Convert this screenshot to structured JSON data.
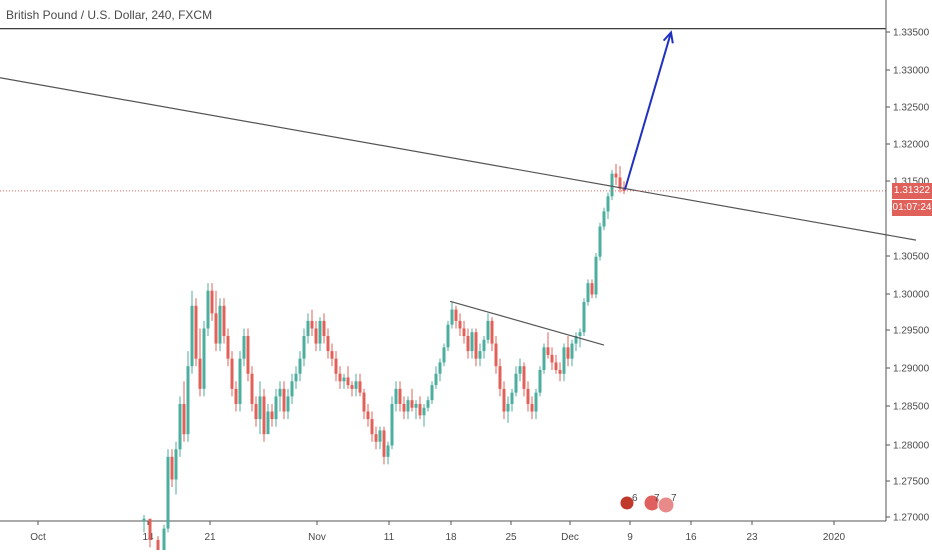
{
  "chart_data": {
    "type": "candlestick",
    "title": "British Pound / U.S. Dollar, 240, FXCM",
    "y_ticks": [
      "1.27000",
      "1.27500",
      "1.28000",
      "1.28500",
      "1.29000",
      "1.29500",
      "1.30000",
      "1.30500",
      "1.31500",
      "1.32000",
      "1.32500",
      "1.33000",
      "1.33500"
    ],
    "x_ticks": [
      "Oct",
      "14",
      "21",
      "Nov",
      "11",
      "18",
      "25",
      "Dec",
      "9",
      "16",
      "23",
      "2020"
    ],
    "ylim": [
      1.2695,
      1.3385
    ],
    "last_price": "1.31322",
    "countdown": "01:07:24",
    "colors": {
      "up": "#4cae9e",
      "down": "#e0605a",
      "trendline": "#555555",
      "arrow": "#2030c0",
      "price_line": "#e0605a"
    },
    "events_badge": {
      "flag_icons": [
        "us-flag-icon",
        "uk-flag-icon"
      ],
      "labels": [
        "6",
        "7",
        "7"
      ]
    },
    "annotations": [
      {
        "type": "horizontal-line",
        "price": 1.3347
      },
      {
        "type": "trendline",
        "from": [
          0,
          1.3282
        ],
        "to": [
          916,
          1.3067
        ]
      },
      {
        "type": "trendline",
        "from": [
          450,
          1.2986
        ],
        "to": [
          604,
          1.2928
        ]
      },
      {
        "type": "arrow",
        "from": [
          625,
          1.3134
        ],
        "to": [
          671,
          1.3342
        ]
      }
    ],
    "candles": [
      [
        144,
        1.2695,
        1.2703,
        1.268,
        1.2698
      ],
      [
        150,
        1.2698,
        1.2698,
        1.266,
        1.267
      ],
      [
        158,
        1.267,
        1.2675,
        1.264,
        1.265
      ],
      [
        164,
        1.265,
        1.269,
        1.2645,
        1.2685
      ],
      [
        168,
        1.2685,
        1.279,
        1.268,
        1.278
      ],
      [
        172,
        1.278,
        1.279,
        1.274,
        1.275
      ],
      [
        176,
        1.275,
        1.28,
        1.273,
        1.279
      ],
      [
        180,
        1.279,
        1.286,
        1.278,
        1.285
      ],
      [
        184,
        1.285,
        1.288,
        1.28,
        1.281
      ],
      [
        188,
        1.281,
        1.292,
        1.28,
        1.29
      ],
      [
        192,
        1.29,
        1.3,
        1.289,
        1.298
      ],
      [
        196,
        1.298,
        1.299,
        1.29,
        1.291
      ],
      [
        200,
        1.291,
        1.295,
        1.286,
        1.287
      ],
      [
        204,
        1.287,
        1.296,
        1.286,
        1.295
      ],
      [
        208,
        1.295,
        1.301,
        1.294,
        1.3
      ],
      [
        212,
        1.3,
        1.301,
        1.296,
        1.297
      ],
      [
        216,
        1.297,
        1.3,
        1.292,
        1.293
      ],
      [
        220,
        1.293,
        1.299,
        1.292,
        1.298
      ],
      [
        224,
        1.298,
        1.299,
        1.293,
        1.294
      ],
      [
        228,
        1.294,
        1.295,
        1.29,
        1.291
      ],
      [
        232,
        1.291,
        1.292,
        1.286,
        1.287
      ],
      [
        236,
        1.287,
        1.288,
        1.284,
        1.285
      ],
      [
        240,
        1.285,
        1.292,
        1.284,
        1.291
      ],
      [
        244,
        1.291,
        1.295,
        1.29,
        1.294
      ],
      [
        248,
        1.294,
        1.295,
        1.288,
        1.289
      ],
      [
        252,
        1.289,
        1.29,
        1.284,
        1.285
      ],
      [
        256,
        1.285,
        1.286,
        1.282,
        1.283
      ],
      [
        260,
        1.283,
        1.288,
        1.281,
        1.286
      ],
      [
        264,
        1.286,
        1.287,
        1.28,
        1.281
      ],
      [
        268,
        1.281,
        1.285,
        1.281,
        1.284
      ],
      [
        272,
        1.284,
        1.285,
        1.282,
        1.283
      ],
      [
        276,
        1.283,
        1.287,
        1.282,
        1.286
      ],
      [
        280,
        1.286,
        1.288,
        1.284,
        1.287
      ],
      [
        284,
        1.287,
        1.288,
        1.283,
        1.284
      ],
      [
        288,
        1.284,
        1.287,
        1.283,
        1.286
      ],
      [
        292,
        1.286,
        1.289,
        1.285,
        1.288
      ],
      [
        296,
        1.288,
        1.29,
        1.287,
        1.289
      ],
      [
        300,
        1.289,
        1.292,
        1.288,
        1.291
      ],
      [
        304,
        1.291,
        1.295,
        1.29,
        1.294
      ],
      [
        308,
        1.294,
        1.297,
        1.293,
        1.296
      ],
      [
        312,
        1.296,
        1.2975,
        1.294,
        1.295
      ],
      [
        316,
        1.295,
        1.296,
        1.292,
        1.293
      ],
      [
        320,
        1.293,
        1.2965,
        1.292,
        1.296
      ],
      [
        324,
        1.296,
        1.297,
        1.293,
        1.294
      ],
      [
        328,
        1.294,
        1.295,
        1.291,
        1.292
      ],
      [
        332,
        1.292,
        1.293,
        1.29,
        1.291
      ],
      [
        336,
        1.291,
        1.292,
        1.288,
        1.289
      ],
      [
        340,
        1.289,
        1.29,
        1.287,
        1.288
      ],
      [
        344,
        1.288,
        1.289,
        1.287,
        1.2885
      ],
      [
        348,
        1.2885,
        1.29,
        1.287,
        1.2875
      ],
      [
        352,
        1.2875,
        1.288,
        1.286,
        1.287
      ],
      [
        356,
        1.287,
        1.289,
        1.286,
        1.288
      ],
      [
        360,
        1.288,
        1.289,
        1.286,
        1.2865
      ],
      [
        364,
        1.2865,
        1.287,
        1.283,
        1.284
      ],
      [
        368,
        1.284,
        1.285,
        1.282,
        1.283
      ],
      [
        372,
        1.283,
        1.284,
        1.28,
        1.281
      ],
      [
        376,
        1.281,
        1.282,
        1.279,
        1.28
      ],
      [
        380,
        1.28,
        1.282,
        1.279,
        1.2815
      ],
      [
        384,
        1.2815,
        1.282,
        1.277,
        1.278
      ],
      [
        388,
        1.278,
        1.28,
        1.277,
        1.2795
      ],
      [
        392,
        1.2795,
        1.286,
        1.279,
        1.285
      ],
      [
        396,
        1.285,
        1.288,
        1.284,
        1.287
      ],
      [
        400,
        1.287,
        1.288,
        1.284,
        1.285
      ],
      [
        404,
        1.285,
        1.286,
        1.283,
        1.284
      ],
      [
        408,
        1.284,
        1.286,
        1.283,
        1.2855
      ],
      [
        412,
        1.2855,
        1.287,
        1.284,
        1.2845
      ],
      [
        416,
        1.2845,
        1.2855,
        1.283,
        1.285
      ],
      [
        420,
        1.285,
        1.286,
        1.283,
        1.2835
      ],
      [
        424,
        1.2835,
        1.285,
        1.282,
        1.2845
      ],
      [
        428,
        1.2845,
        1.286,
        1.284,
        1.2855
      ],
      [
        432,
        1.2855,
        1.288,
        1.285,
        1.2875
      ],
      [
        436,
        1.2875,
        1.29,
        1.287,
        1.289
      ],
      [
        440,
        1.289,
        1.291,
        1.288,
        1.2905
      ],
      [
        444,
        1.2905,
        1.293,
        1.29,
        1.2925
      ],
      [
        448,
        1.2925,
        1.296,
        1.292,
        1.2955
      ],
      [
        452,
        1.2955,
        1.2985,
        1.295,
        1.2975
      ],
      [
        456,
        1.2975,
        1.298,
        1.295,
        1.296
      ],
      [
        460,
        1.296,
        1.297,
        1.294,
        1.295
      ],
      [
        464,
        1.295,
        1.296,
        1.293,
        1.294
      ],
      [
        468,
        1.294,
        1.295,
        1.291,
        1.292
      ],
      [
        472,
        1.292,
        1.295,
        1.291,
        1.2945
      ],
      [
        476,
        1.2945,
        1.295,
        1.29,
        1.291
      ],
      [
        480,
        1.291,
        1.293,
        1.29,
        1.292
      ],
      [
        484,
        1.292,
        1.294,
        1.291,
        1.2935
      ],
      [
        488,
        1.2935,
        1.297,
        1.293,
        1.296
      ],
      [
        492,
        1.296,
        1.2965,
        1.292,
        1.293
      ],
      [
        496,
        1.293,
        1.294,
        1.289,
        1.29
      ],
      [
        500,
        1.29,
        1.291,
        1.286,
        1.287
      ],
      [
        504,
        1.287,
        1.288,
        1.283,
        1.284
      ],
      [
        508,
        1.284,
        1.286,
        1.2825,
        1.285
      ],
      [
        512,
        1.285,
        1.287,
        1.284,
        1.2865
      ],
      [
        516,
        1.2865,
        1.29,
        1.286,
        1.289
      ],
      [
        520,
        1.289,
        1.291,
        1.288,
        1.29
      ],
      [
        524,
        1.29,
        1.2905,
        1.286,
        1.287
      ],
      [
        528,
        1.287,
        1.288,
        1.284,
        1.285
      ],
      [
        532,
        1.285,
        1.286,
        1.283,
        1.284
      ],
      [
        536,
        1.284,
        1.287,
        1.283,
        1.2865
      ],
      [
        540,
        1.2865,
        1.29,
        1.286,
        1.2895
      ],
      [
        544,
        1.2895,
        1.293,
        1.289,
        1.2925
      ],
      [
        548,
        1.2925,
        1.2945,
        1.291,
        1.2915
      ],
      [
        552,
        1.2915,
        1.2925,
        1.2895,
        1.2905
      ],
      [
        556,
        1.2905,
        1.2915,
        1.289,
        1.2895
      ],
      [
        560,
        1.2895,
        1.2905,
        1.288,
        1.289
      ],
      [
        564,
        1.289,
        1.293,
        1.288,
        1.2925
      ],
      [
        568,
        1.2925,
        1.294,
        1.29,
        1.291
      ],
      [
        572,
        1.291,
        1.2935,
        1.29,
        1.293
      ],
      [
        576,
        1.293,
        1.2945,
        1.292,
        1.294
      ],
      [
        580,
        1.294,
        1.295,
        1.2925,
        1.2945
      ],
      [
        584,
        1.2945,
        1.299,
        1.294,
        1.2985
      ],
      [
        588,
        1.2985,
        1.3015,
        1.298,
        1.301
      ],
      [
        592,
        1.301,
        1.3015,
        1.299,
        1.2995
      ],
      [
        596,
        1.2995,
        1.305,
        1.299,
        1.3045
      ],
      [
        600,
        1.3045,
        1.309,
        1.304,
        1.3085
      ],
      [
        604,
        1.3085,
        1.311,
        1.308,
        1.3105
      ],
      [
        608,
        1.3105,
        1.313,
        1.3095,
        1.3125
      ],
      [
        612,
        1.3125,
        1.316,
        1.312,
        1.3155
      ],
      [
        616,
        1.3155,
        1.3168,
        1.314,
        1.315
      ],
      [
        620,
        1.315,
        1.3165,
        1.313,
        1.3135
      ],
      [
        624,
        1.3135,
        1.3145,
        1.3128,
        1.3132
      ]
    ]
  }
}
